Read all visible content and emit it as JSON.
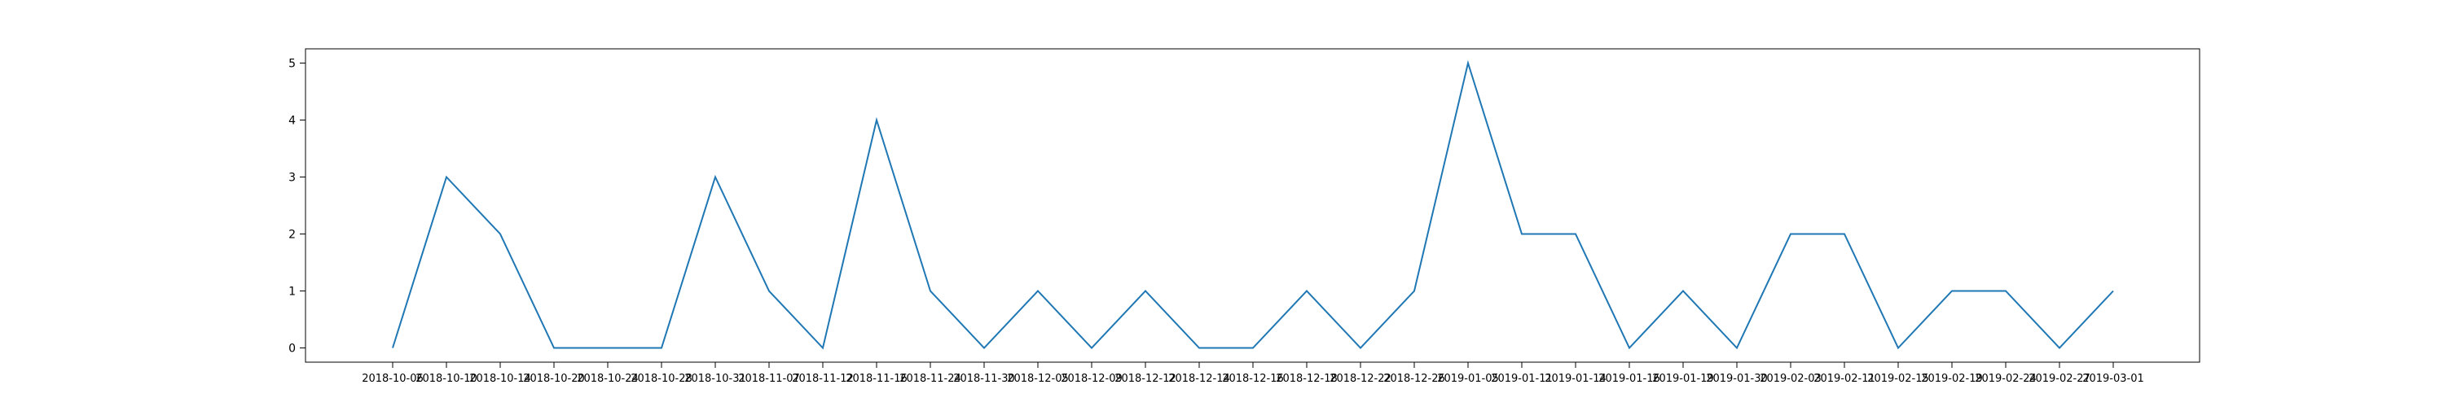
{
  "chart_data": {
    "type": "line",
    "title": "",
    "xlabel": "",
    "ylabel": "",
    "grid": false,
    "legend": "none",
    "line_color": "#1f77b4",
    "ylim": [
      -0.25,
      5.25
    ],
    "y_ticks": [
      0,
      1,
      2,
      3,
      4,
      5
    ],
    "x": [
      "2018-10-06",
      "2018-10-10",
      "2018-10-14",
      "2018-10-20",
      "2018-10-24",
      "2018-10-28",
      "2018-10-31",
      "2018-11-07",
      "2018-11-12",
      "2018-11-16",
      "2018-11-24",
      "2018-11-30",
      "2018-12-05",
      "2018-12-09",
      "2018-12-12",
      "2018-12-14",
      "2018-12-16",
      "2018-12-18",
      "2018-12-22",
      "2018-12-26",
      "2019-01-05",
      "2019-01-11",
      "2019-01-14",
      "2019-01-16",
      "2019-01-19",
      "2019-01-30",
      "2019-02-03",
      "2019-02-11",
      "2019-02-15",
      "2019-02-19",
      "2019-02-24",
      "2019-02-27",
      "2019-03-01"
    ],
    "series": [
      {
        "values": [
          0,
          3,
          2,
          0,
          0,
          0,
          3,
          1,
          0,
          4,
          1,
          0,
          1,
          0,
          1,
          0,
          0,
          1,
          0,
          1,
          5,
          2,
          2,
          0,
          1,
          0,
          2,
          2,
          0,
          1,
          1,
          0,
          1
        ]
      }
    ]
  }
}
